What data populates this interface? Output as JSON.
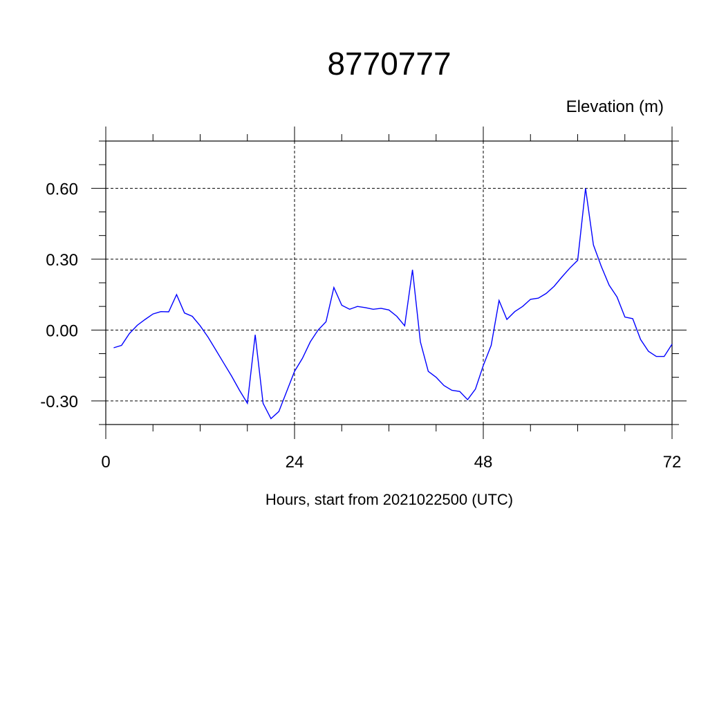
{
  "chart_data": {
    "type": "line",
    "title": "8770777",
    "ylabel": "Elevation (m)",
    "xlabel": "Hours, start from 2021022500 (UTC)",
    "xlim": [
      0,
      72
    ],
    "ylim": [
      -0.4,
      0.8
    ],
    "xticks": [
      0,
      24,
      48,
      72
    ],
    "xtick_labels": [
      "0",
      "24",
      "48",
      "72"
    ],
    "yticks": [
      -0.3,
      0.0,
      0.3,
      0.6
    ],
    "ytick_labels": [
      "-0.30",
      "0.00",
      "0.30",
      "0.60"
    ],
    "grid": true,
    "series": [
      {
        "color": "#0000ff",
        "x": [
          1,
          2,
          3,
          4,
          5,
          6,
          7,
          8,
          9,
          10,
          11,
          12,
          13,
          14,
          15,
          16,
          17,
          18,
          19,
          20,
          21,
          22,
          23,
          24,
          25,
          26,
          27,
          28,
          29,
          30,
          31,
          32,
          33,
          34,
          35,
          36,
          37,
          38,
          39,
          40,
          41,
          42,
          43,
          44,
          45,
          46,
          47,
          48,
          49,
          50,
          51,
          52,
          53,
          54,
          55,
          56,
          57,
          58,
          59,
          60,
          61,
          62,
          63,
          64,
          65,
          66,
          67,
          68,
          69,
          70,
          71,
          72
        ],
        "y": [
          -0.075,
          -0.065,
          -0.015,
          0.02,
          0.045,
          0.068,
          0.078,
          0.077,
          0.15,
          0.072,
          0.058,
          0.018,
          -0.03,
          -0.085,
          -0.14,
          -0.195,
          -0.255,
          -0.31,
          -0.02,
          -0.31,
          -0.375,
          -0.345,
          -0.26,
          -0.175,
          -0.12,
          -0.05,
          0.0,
          0.035,
          0.18,
          0.105,
          0.088,
          0.1,
          0.095,
          0.088,
          0.092,
          0.085,
          0.058,
          0.018,
          0.255,
          -0.05,
          -0.175,
          -0.2,
          -0.235,
          -0.255,
          -0.26,
          -0.295,
          -0.25,
          -0.15,
          -0.065,
          0.125,
          0.045,
          0.078,
          0.1,
          0.13,
          0.135,
          0.155,
          0.185,
          0.225,
          0.262,
          0.295,
          0.6,
          0.36,
          0.27,
          0.19,
          0.14,
          0.055,
          0.048,
          -0.04,
          -0.09,
          -0.112,
          -0.112,
          -0.06
        ]
      }
    ]
  }
}
